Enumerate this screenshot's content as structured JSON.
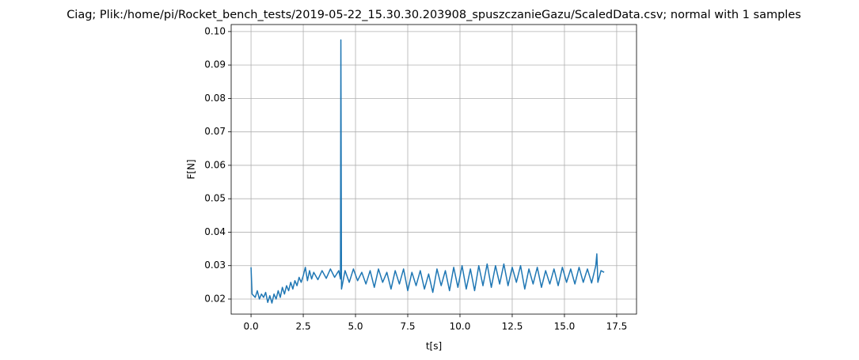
{
  "chart_data": {
    "type": "line",
    "title": "Ciag; Plik:/home/pi/Rocket_bench_tests/2019-05-22_15.30.30.203908_spuszczanieGazu/ScaledData.csv; normal with 1 samples",
    "xlabel": "t[s]",
    "ylabel": "F[N]",
    "color": "#1f77b4",
    "grid": true,
    "xlim": [
      -0.95,
      18.45
    ],
    "ylim": [
      0.0155,
      0.1021
    ],
    "xticks": [
      {
        "value": 0,
        "label": "0.0"
      },
      2.5,
      {
        "value": 5,
        "label": "5.0"
      },
      7.5,
      {
        "value": 10,
        "label": "10.0"
      },
      12.5,
      {
        "value": 15,
        "label": "15.0"
      },
      17.5
    ],
    "yticks": [
      0.02,
      0.03,
      0.04,
      0.05,
      0.06,
      0.07,
      0.08,
      0.09,
      {
        "value": 0.1,
        "label": "0.10"
      }
    ],
    "x": [
      0.0,
      0.05,
      0.2,
      0.3,
      0.4,
      0.5,
      0.6,
      0.7,
      0.8,
      0.9,
      1.0,
      1.1,
      1.2,
      1.3,
      1.4,
      1.5,
      1.6,
      1.7,
      1.8,
      1.9,
      2.0,
      2.1,
      2.2,
      2.3,
      2.4,
      2.5,
      2.6,
      2.7,
      2.8,
      2.9,
      3.0,
      3.2,
      3.4,
      3.6,
      3.8,
      4.0,
      4.2,
      4.28,
      4.3,
      4.33,
      4.5,
      4.7,
      4.9,
      5.1,
      5.3,
      5.5,
      5.7,
      5.9,
      6.1,
      6.3,
      6.5,
      6.7,
      6.9,
      7.1,
      7.3,
      7.5,
      7.7,
      7.9,
      8.1,
      8.3,
      8.5,
      8.7,
      8.9,
      9.1,
      9.3,
      9.5,
      9.7,
      9.9,
      10.1,
      10.3,
      10.5,
      10.7,
      10.9,
      11.1,
      11.3,
      11.5,
      11.7,
      11.9,
      12.1,
      12.3,
      12.5,
      12.7,
      12.9,
      13.1,
      13.3,
      13.5,
      13.7,
      13.9,
      14.1,
      14.3,
      14.5,
      14.7,
      14.9,
      15.1,
      15.3,
      15.5,
      15.7,
      15.9,
      16.1,
      16.3,
      16.5,
      16.55,
      16.6,
      16.75,
      16.9
    ],
    "values": [
      0.0295,
      0.0215,
      0.0205,
      0.0225,
      0.02,
      0.0215,
      0.0205,
      0.022,
      0.019,
      0.021,
      0.0188,
      0.0215,
      0.02,
      0.0225,
      0.0205,
      0.0235,
      0.0215,
      0.024,
      0.0225,
      0.025,
      0.023,
      0.0255,
      0.024,
      0.0265,
      0.025,
      0.027,
      0.0295,
      0.0255,
      0.0285,
      0.026,
      0.028,
      0.0258,
      0.0285,
      0.0262,
      0.029,
      0.0265,
      0.0285,
      0.026,
      0.0975,
      0.023,
      0.0285,
      0.025,
      0.029,
      0.0255,
      0.028,
      0.0245,
      0.0285,
      0.0235,
      0.029,
      0.025,
      0.028,
      0.023,
      0.0285,
      0.0245,
      0.029,
      0.0225,
      0.028,
      0.024,
      0.0285,
      0.023,
      0.0275,
      0.022,
      0.029,
      0.024,
      0.0285,
      0.0225,
      0.0295,
      0.0235,
      0.03,
      0.023,
      0.029,
      0.0225,
      0.03,
      0.024,
      0.0305,
      0.0235,
      0.03,
      0.0245,
      0.0305,
      0.024,
      0.0295,
      0.025,
      0.03,
      0.023,
      0.029,
      0.0245,
      0.0295,
      0.0235,
      0.0285,
      0.0245,
      0.029,
      0.024,
      0.0295,
      0.025,
      0.029,
      0.0245,
      0.0295,
      0.025,
      0.029,
      0.0248,
      0.03,
      0.0335,
      0.025,
      0.0285,
      0.028
    ]
  }
}
